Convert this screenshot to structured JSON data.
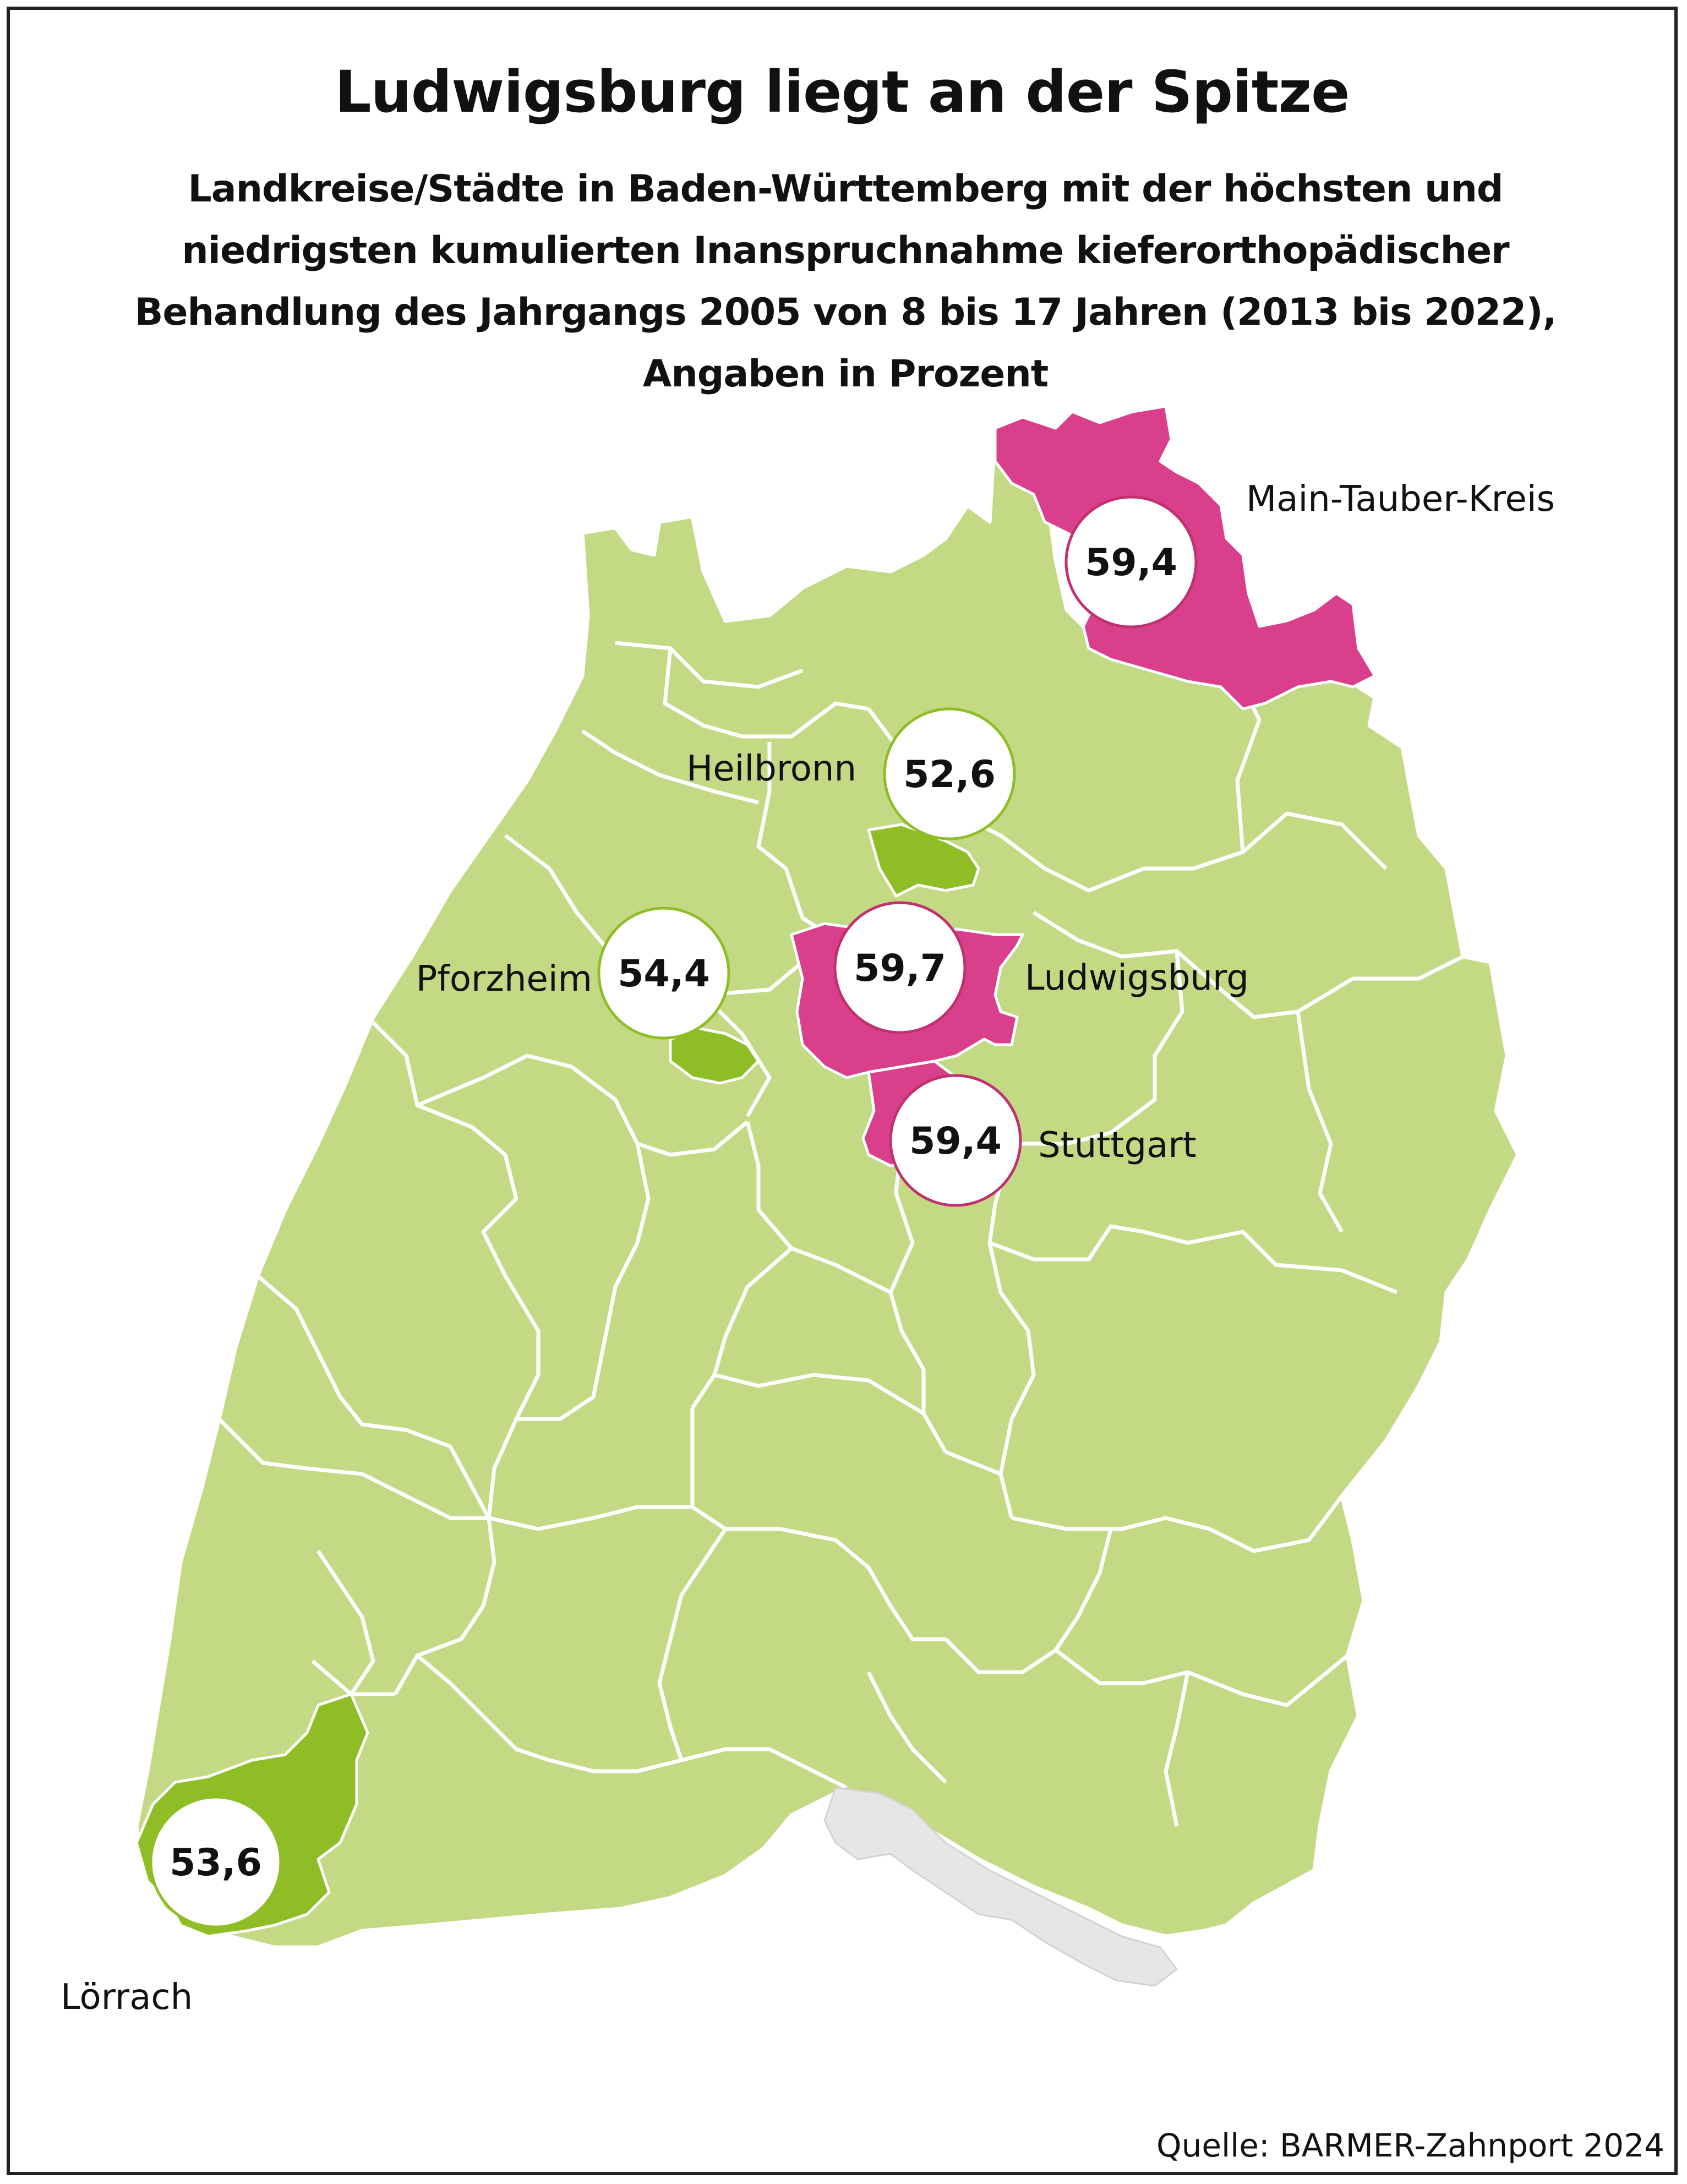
{
  "title": "Ludwigsburg liegt an der Spitze",
  "subtitle": "Landkreise/Städte in Baden-Württemberg mit der höchsten und niedrigsten kumulierten Inanspruchnahme kieferorthopädischer Behandlung des Jahrgangs 2005 von 8 bis 17 Jahren (2013 bis 2022), Angaben in Prozent",
  "source": "Quelle: BARMER-Zahnport 2024",
  "colors": {
    "base": "#c3d984",
    "highest": "#d93f8a",
    "lowest": "#8fbd26",
    "lake": "#e6e6e6"
  },
  "regions": [
    {
      "name": "Main-Tauber-Kreis",
      "value": "59,4",
      "category": "highest"
    },
    {
      "name": "Heilbronn",
      "value": "52,6",
      "category": "lowest"
    },
    {
      "name": "Pforzheim",
      "value": "54,4",
      "category": "lowest"
    },
    {
      "name": "Ludwigsburg",
      "value": "59,7",
      "category": "highest"
    },
    {
      "name": "Stuttgart",
      "value": "59,4",
      "category": "highest"
    },
    {
      "name": "Lörrach",
      "value": "53,6",
      "category": "lowest"
    }
  ]
}
